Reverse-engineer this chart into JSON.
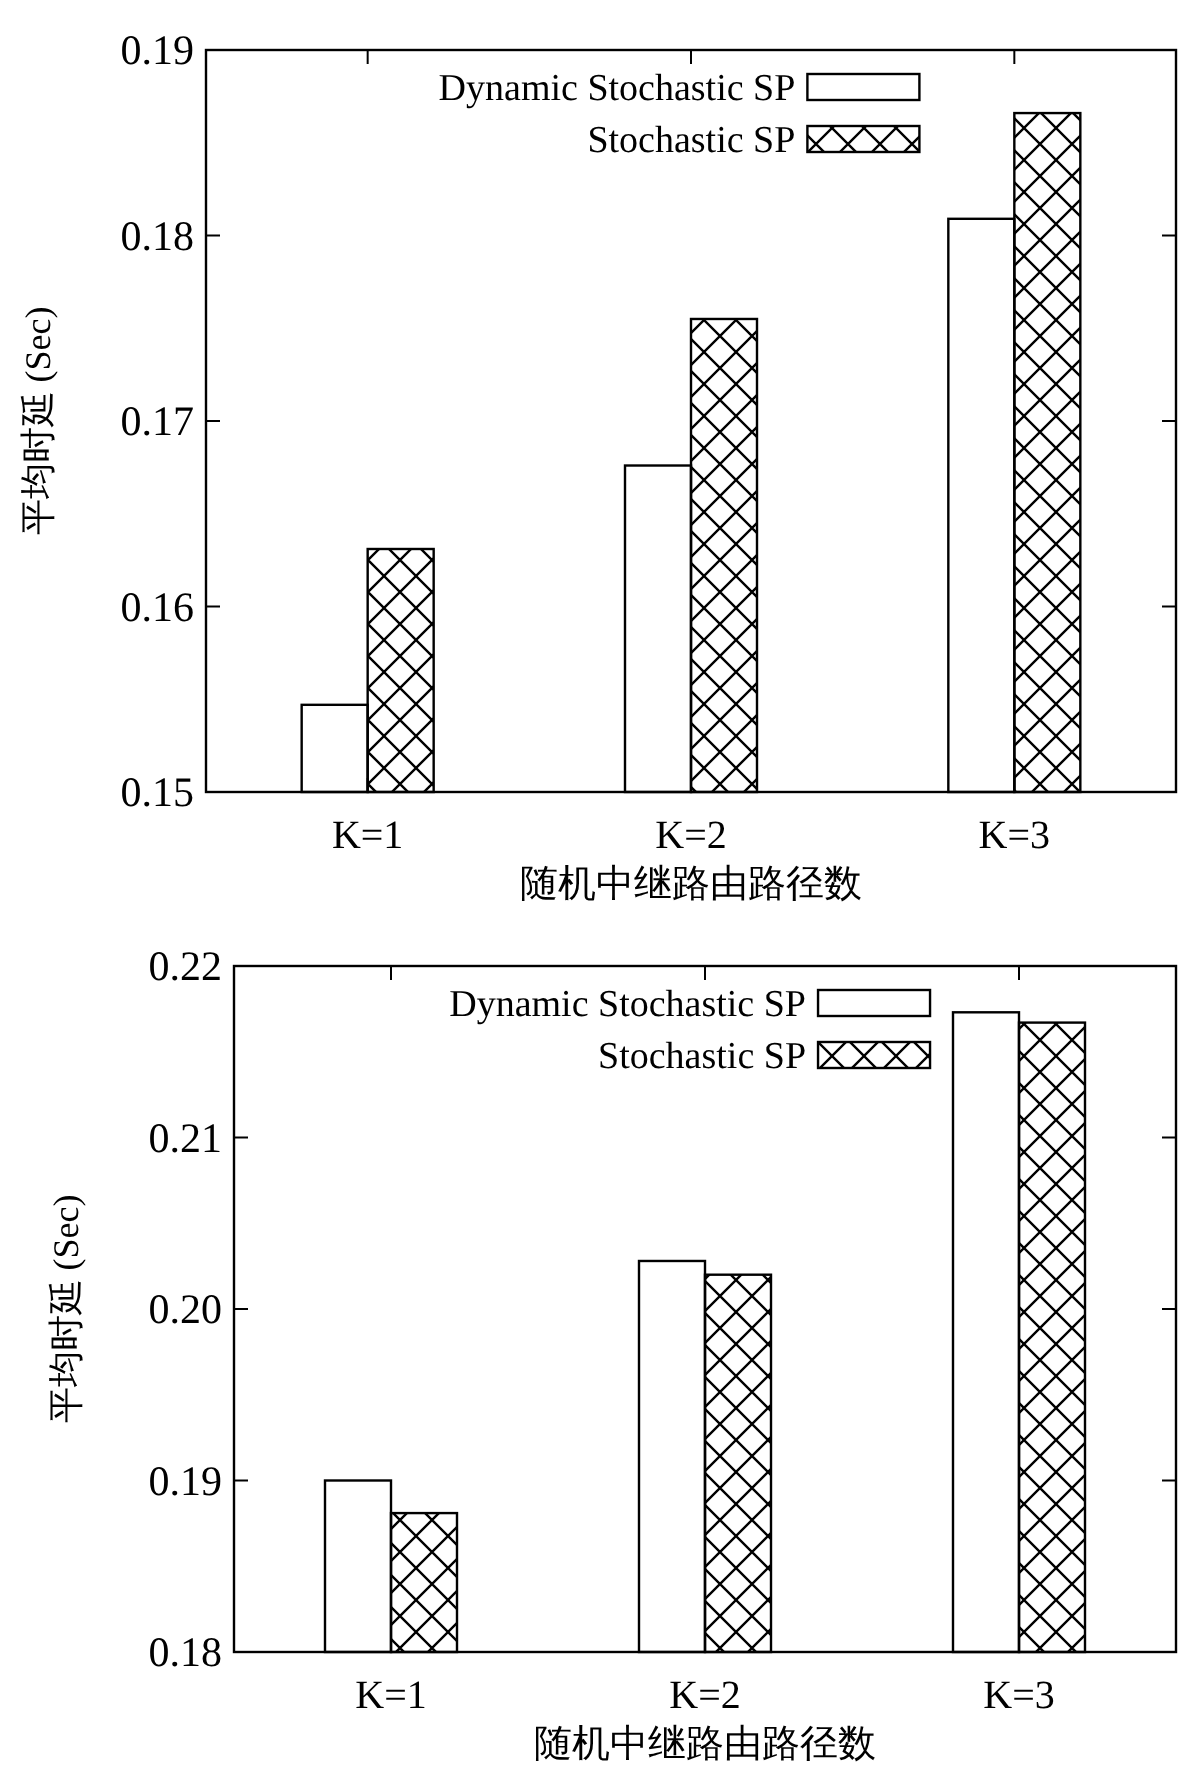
{
  "chart_data": [
    {
      "type": "bar",
      "ylabel": "平均时延 (Sec)",
      "xlabel": "随机中继路由路径数",
      "categories": [
        "K=1",
        "K=2",
        "K=3"
      ],
      "series": [
        {
          "name": "Dynamic Stochastic SP",
          "color": "#ffffff",
          "values": [
            0.1547,
            0.1676,
            0.1809
          ]
        },
        {
          "name": "Stochastic SP",
          "color": "#000000",
          "values": [
            0.1631,
            0.1755,
            0.1866
          ]
        }
      ],
      "ylim": [
        0.15,
        0.19
      ],
      "yticks": [
        0.15,
        0.16,
        0.17,
        0.18,
        0.19
      ],
      "legend": "top right",
      "grid": false
    },
    {
      "type": "bar",
      "ylabel": "平均时延 (Sec)",
      "xlabel": "随机中继路由路径数",
      "categories": [
        "K=1",
        "K=2",
        "K=3"
      ],
      "series": [
        {
          "name": "Dynamic Stochastic SP",
          "color": "#ffffff",
          "values": [
            0.19,
            0.2028,
            0.2173
          ]
        },
        {
          "name": "Stochastic SP",
          "color": "#000000",
          "values": [
            0.1881,
            0.202,
            0.2167
          ]
        }
      ],
      "ylim": [
        0.18,
        0.22
      ],
      "yticks": [
        0.18,
        0.19,
        {
          "value": 0.2,
          "label": "0.20"
        },
        0.21,
        {
          "value": 0.22,
          "label": "0.22"
        }
      ],
      "legend": "top right",
      "grid": false
    }
  ]
}
